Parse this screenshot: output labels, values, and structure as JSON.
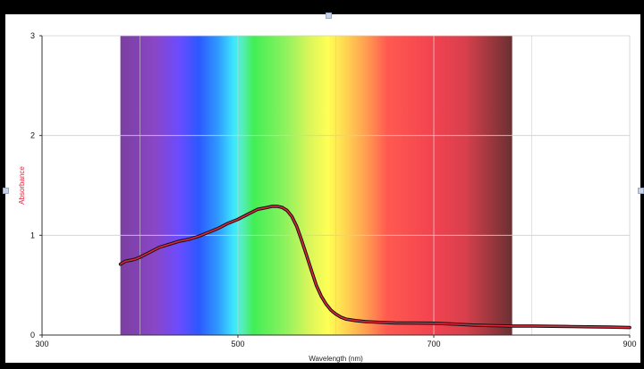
{
  "chart_data": {
    "type": "line",
    "title": "",
    "xlabel": "Wavelength (nm)",
    "ylabel": "Absorbance",
    "xlim": [
      300,
      900
    ],
    "ylim": [
      0,
      3
    ],
    "x_ticks": [
      "300",
      "500",
      "700",
      "900"
    ],
    "y_ticks": [
      "0",
      "1",
      "2",
      "3"
    ],
    "grid": true,
    "legend": "none",
    "spectrum_band_nm": [
      380,
      780
    ],
    "series": [
      {
        "color": "#e0263d",
        "x": [
          380,
          385,
          390,
          395,
          400,
          410,
          420,
          430,
          440,
          450,
          460,
          470,
          480,
          490,
          500,
          510,
          520,
          530,
          535,
          540,
          545,
          550,
          555,
          560,
          565,
          570,
          575,
          580,
          585,
          590,
          595,
          600,
          605,
          610,
          620,
          630,
          640,
          650,
          660,
          680,
          700,
          720,
          740,
          760,
          780,
          800,
          820,
          840,
          860,
          880,
          900
        ],
        "y": [
          0.71,
          0.74,
          0.75,
          0.76,
          0.78,
          0.83,
          0.88,
          0.91,
          0.94,
          0.96,
          0.99,
          1.03,
          1.07,
          1.12,
          1.16,
          1.21,
          1.26,
          1.28,
          1.29,
          1.29,
          1.28,
          1.25,
          1.19,
          1.09,
          0.95,
          0.8,
          0.65,
          0.5,
          0.39,
          0.31,
          0.25,
          0.21,
          0.18,
          0.16,
          0.145,
          0.135,
          0.13,
          0.125,
          0.122,
          0.12,
          0.118,
          0.11,
          0.1,
          0.095,
          0.09,
          0.09,
          0.088,
          0.085,
          0.082,
          0.08,
          0.075
        ]
      }
    ]
  },
  "colors": {
    "curve": "#e0263d",
    "curve_shadow": "#111111",
    "ylabel": "#e0263d",
    "grid": "#cfcfcf",
    "axis": "#333333"
  }
}
